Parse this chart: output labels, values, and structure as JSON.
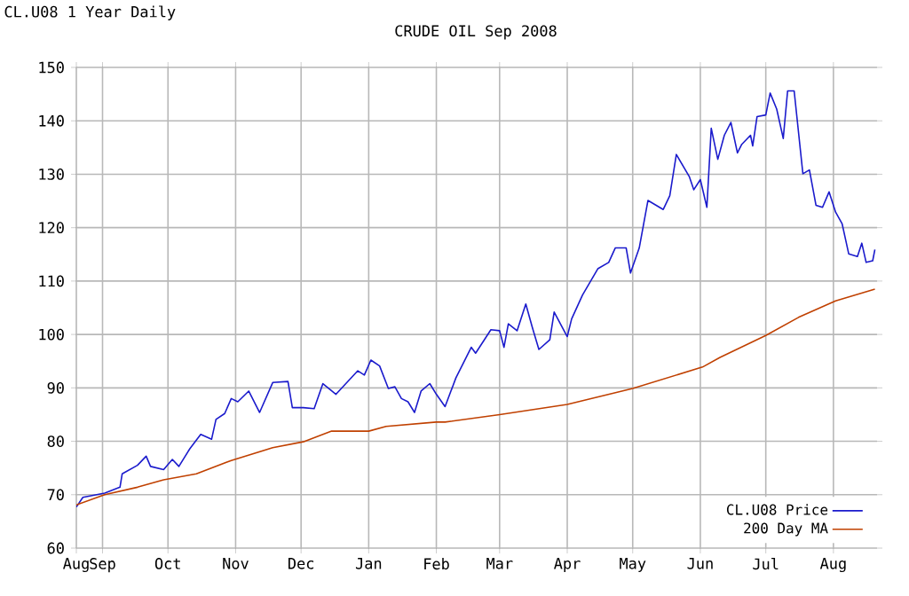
{
  "chart_data": {
    "type": "line",
    "title": "CRUDE OIL Sep 2008",
    "subtitle": "CL.U08 1 Year Daily",
    "xlim": [
      "2007-08-20",
      "2008-08-21"
    ],
    "xticks": [
      {
        "value": "2007-08-20",
        "label": "Aug"
      },
      {
        "value": "2007-09-01",
        "label": "Sep"
      },
      {
        "value": "2007-10-01",
        "label": "Oct"
      },
      {
        "value": "2007-11-01",
        "label": "Nov"
      },
      {
        "value": "2007-12-01",
        "label": "Dec"
      },
      {
        "value": "2008-01-01",
        "label": "Jan"
      },
      {
        "value": "2008-02-01",
        "label": "Feb"
      },
      {
        "value": "2008-03-01",
        "label": "Mar"
      },
      {
        "value": "2008-04-01",
        "label": "Apr"
      },
      {
        "value": "2008-05-01",
        "label": "May"
      },
      {
        "value": "2008-06-01",
        "label": "Jun"
      },
      {
        "value": "2008-07-01",
        "label": "Jul"
      },
      {
        "value": "2008-08-01",
        "label": "Aug"
      }
    ],
    "ylim": [
      60,
      150
    ],
    "yticks": [
      60,
      70,
      80,
      90,
      100,
      110,
      120,
      130,
      140,
      150
    ],
    "grid": true,
    "legend": "bottom right",
    "marker": "none",
    "line_style": "solid",
    "series": [
      {
        "name": "CL.U08 Price",
        "color": "#1a1acc",
        "x": [
          "2007-08-20",
          "2007-08-23",
          "2007-09-02",
          "2007-09-09",
          "2007-09-10",
          "2007-09-17",
          "2007-09-21",
          "2007-09-23",
          "2007-09-29",
          "2007-10-03",
          "2007-10-06",
          "2007-10-11",
          "2007-10-16",
          "2007-10-21",
          "2007-10-23",
          "2007-10-27",
          "2007-10-30",
          "2007-11-02",
          "2007-11-07",
          "2007-11-12",
          "2007-11-18",
          "2007-11-25",
          "2007-11-27",
          "2007-12-02",
          "2007-12-07",
          "2007-12-11",
          "2007-12-17",
          "2007-12-22",
          "2007-12-27",
          "2007-12-30",
          "2008-01-02",
          "2008-01-06",
          "2008-01-10",
          "2008-01-13",
          "2008-01-16",
          "2008-01-19",
          "2008-01-22",
          "2008-01-25",
          "2008-01-29",
          "2008-02-01",
          "2008-02-05",
          "2008-02-10",
          "2008-02-17",
          "2008-02-19",
          "2008-02-26",
          "2008-03-01",
          "2008-03-03",
          "2008-03-05",
          "2008-03-09",
          "2008-03-13",
          "2008-03-16",
          "2008-03-19",
          "2008-03-24",
          "2008-03-26",
          "2008-04-01",
          "2008-04-03",
          "2008-04-08",
          "2008-04-15",
          "2008-04-20",
          "2008-04-23",
          "2008-04-28",
          "2008-04-30",
          "2008-05-04",
          "2008-05-08",
          "2008-05-15",
          "2008-05-18",
          "2008-05-21",
          "2008-05-27",
          "2008-05-29",
          "2008-06-01",
          "2008-06-04",
          "2008-06-06",
          "2008-06-09",
          "2008-06-12",
          "2008-06-15",
          "2008-06-18",
          "2008-06-20",
          "2008-06-24",
          "2008-06-25",
          "2008-06-27",
          "2008-07-01",
          "2008-07-03",
          "2008-07-06",
          "2008-07-09",
          "2008-07-11",
          "2008-07-14",
          "2008-07-18",
          "2008-07-21",
          "2008-07-24",
          "2008-07-27",
          "2008-07-30",
          "2008-08-02",
          "2008-08-05",
          "2008-08-08",
          "2008-08-12",
          "2008-08-14",
          "2008-08-16",
          "2008-08-19",
          "2008-08-20"
        ],
        "values": [
          67.7,
          69.5,
          70.3,
          71.4,
          73.9,
          75.5,
          77.2,
          75.3,
          74.7,
          76.6,
          75.3,
          78.6,
          81.3,
          80.4,
          84.1,
          85.2,
          88,
          87.4,
          89.4,
          85.4,
          91,
          91.2,
          86.3,
          86.3,
          86.1,
          90.8,
          88.8,
          91,
          93.2,
          92.4,
          95.2,
          94.1,
          89.9,
          90.2,
          88,
          87.4,
          85.4,
          89.4,
          90.8,
          88.8,
          86.5,
          91.9,
          97.6,
          96.5,
          100.9,
          100.7,
          97.6,
          102,
          100.7,
          105.7,
          101.3,
          97.2,
          99,
          104.2,
          99.6,
          102.9,
          107.4,
          112.3,
          113.5,
          116.2,
          116.2,
          111.5,
          116.2,
          125.1,
          123.4,
          126,
          133.7,
          129.5,
          127.1,
          129,
          123.8,
          138.6,
          132.8,
          137.3,
          139.7,
          134,
          135.6,
          137.3,
          135.3,
          140.8,
          141.1,
          145.2,
          142.2,
          136.7,
          145.6,
          145.6,
          130.1,
          130.8,
          124.2,
          123.8,
          126.7,
          122.9,
          120.7,
          115.1,
          114.6,
          117.1,
          113.5,
          113.8,
          115.9
        ]
      },
      {
        "name": "200 Day MA",
        "color": "#c04000",
        "x": [
          "2007-08-20",
          "2007-09-02",
          "2007-09-17",
          "2007-09-29",
          "2007-10-14",
          "2007-10-30",
          "2007-11-18",
          "2007-12-02",
          "2007-12-15",
          "2008-01-01",
          "2008-01-09",
          "2008-02-01",
          "2008-02-05",
          "2008-03-01",
          "2008-04-01",
          "2008-05-01",
          "2008-06-02",
          "2008-06-10",
          "2008-07-01",
          "2008-07-16",
          "2008-08-02",
          "2008-08-20"
        ],
        "values": [
          68.1,
          70,
          71.4,
          72.8,
          73.9,
          76.4,
          78.8,
          79.9,
          81.9,
          81.9,
          82.8,
          83.6,
          83.6,
          85,
          86.9,
          89.9,
          93.9,
          95.7,
          99.8,
          103.2,
          106.3,
          108.5
        ]
      }
    ]
  }
}
